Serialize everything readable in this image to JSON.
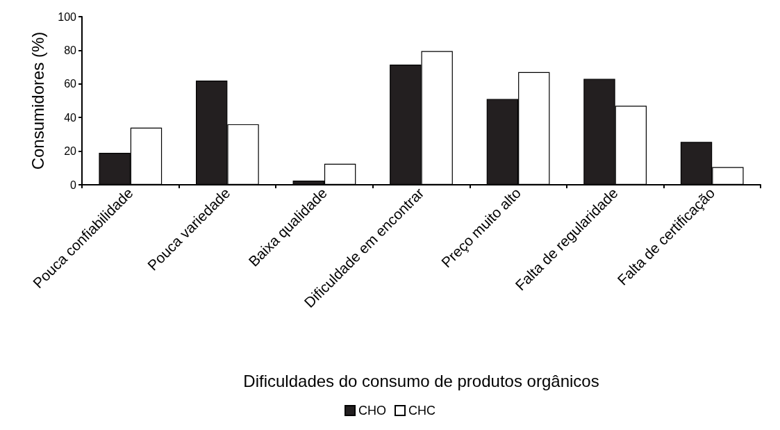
{
  "chart_data": {
    "type": "bar",
    "xlabel": "Dificuldades do consumo de produtos orgânicos",
    "ylabel": "Consumidores (%)",
    "categories": [
      "Pouca confiabilidade",
      "Pouca variedade",
      "Baixa qualidade",
      "Dificuldade em encontrar",
      "Preço muito alto",
      "Falta de regularidade",
      "Falta de certificação"
    ],
    "series": [
      {
        "name": "CHO",
        "color": "#231f20",
        "values": [
          19,
          62,
          2.5,
          71.5,
          51,
          63,
          25.5
        ]
      },
      {
        "name": "CHC",
        "color": "#ffffff",
        "values": [
          34,
          36,
          12.5,
          79.5,
          67,
          47,
          10.5
        ]
      }
    ],
    "ylim": [
      0,
      100
    ],
    "yticks": [
      0,
      20,
      40,
      60,
      80,
      100
    ],
    "grid": false,
    "legend": "bottom"
  }
}
